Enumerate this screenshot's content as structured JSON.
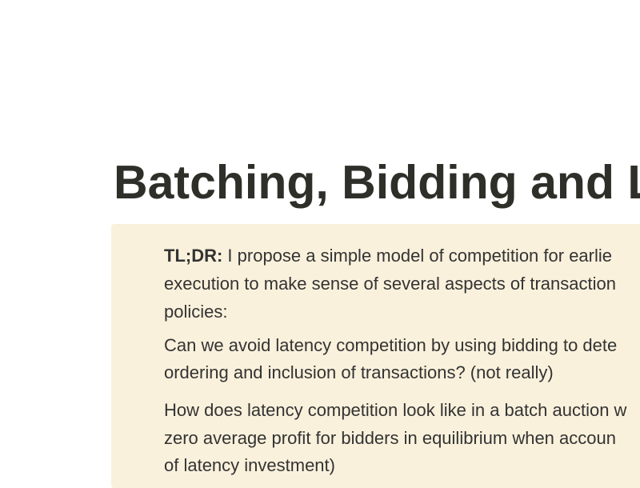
{
  "header": {
    "title": "Batching, Bidding and L"
  },
  "summary": {
    "label": "TL;DR:",
    "lines": [
      " I propose a simple model of competition for earlie",
      "execution to make sense of several aspects of transaction",
      "policies:"
    ]
  },
  "paragraphs": [
    {
      "lines": [
        "Can we avoid latency competition by using bidding to dete",
        "ordering and inclusion of transactions? (not really)"
      ]
    },
    {
      "lines": [
        "How does latency competition look like in a batch auction w",
        "zero average profit for bidders in equilibrium when accoun",
        "of latency investment)"
      ]
    }
  ]
}
